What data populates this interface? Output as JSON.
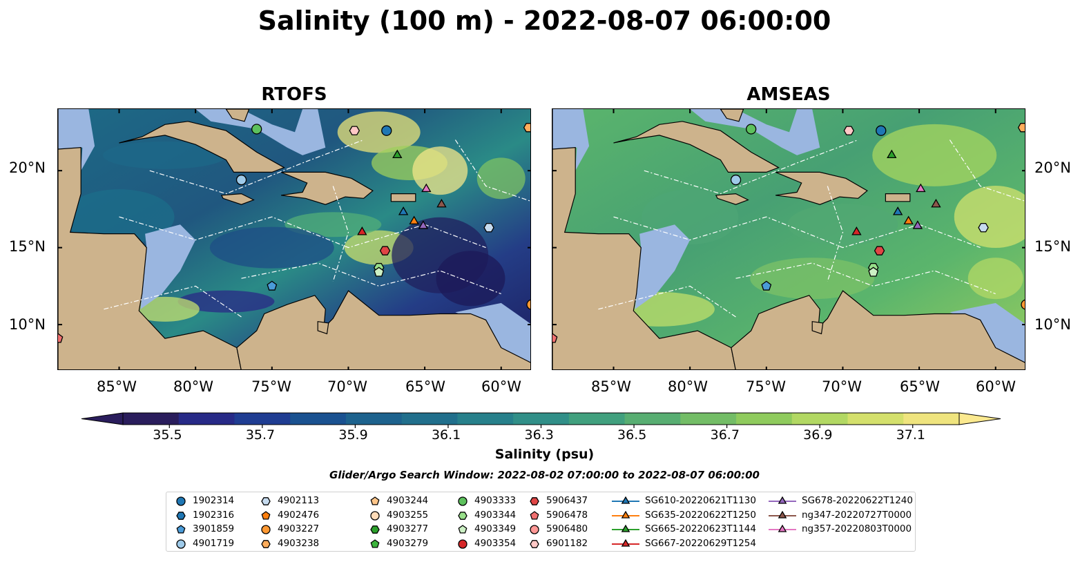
{
  "title": "Salinity (100 m) - 2022-08-07 06:00:00",
  "panels": [
    {
      "name": "RTOFS"
    },
    {
      "name": "AMSEAS"
    }
  ],
  "map": {
    "lon_range": [
      -89,
      -58
    ],
    "lat_range": [
      7,
      24
    ],
    "lon_ticks": [
      "85°W",
      "80°W",
      "75°W",
      "70°W",
      "65°W",
      "60°W"
    ],
    "lon_tick_values": [
      -85,
      -80,
      -75,
      -70,
      -65,
      -60
    ],
    "lat_ticks": [
      "20°N",
      "15°N",
      "10°N"
    ],
    "lat_tick_values": [
      20,
      15,
      10
    ],
    "land_color": "#cdb38c",
    "shelf_color": "#9ab6e0"
  },
  "colorbar": {
    "label": "Salinity (psu)",
    "ticks": [
      "35.5",
      "35.7",
      "35.9",
      "36.1",
      "36.3",
      "36.5",
      "36.7",
      "36.9",
      "37.1"
    ],
    "range": [
      35.4,
      37.2
    ],
    "colormap": "haline"
  },
  "search_window": "Glider/Argo Search Window: 2022-08-02 07:00:00 to 2022-08-07 06:00:00",
  "legend": {
    "columns": [
      [
        {
          "label": "1902314",
          "marker": "circle",
          "color": "#1f77b4"
        },
        {
          "label": "1902316",
          "marker": "hexagon",
          "color": "#1f77b4"
        },
        {
          "label": "3901859",
          "marker": "pentagon",
          "color": "#4a9bd8"
        },
        {
          "label": "4901719",
          "marker": "circle",
          "color": "#9ecae9"
        }
      ],
      [
        {
          "label": "4902113",
          "marker": "hexagon",
          "color": "#c6dbef"
        },
        {
          "label": "4902476",
          "marker": "pentagon",
          "color": "#ff7f0e"
        },
        {
          "label": "4903227",
          "marker": "circle",
          "color": "#ff9933"
        },
        {
          "label": "4903238",
          "marker": "hexagon",
          "color": "#ffad5c"
        }
      ],
      [
        {
          "label": "4903244",
          "marker": "pentagon",
          "color": "#ffc68a"
        },
        {
          "label": "4903255",
          "marker": "circle",
          "color": "#ffdbb8"
        },
        {
          "label": "4903277",
          "marker": "hexagon",
          "color": "#2ca02c"
        },
        {
          "label": "4903279",
          "marker": "pentagon",
          "color": "#3cb43c"
        }
      ],
      [
        {
          "label": "4903333",
          "marker": "circle",
          "color": "#5dc15d"
        },
        {
          "label": "4903344",
          "marker": "hexagon",
          "color": "#98df8a"
        },
        {
          "label": "4903349",
          "marker": "pentagon",
          "color": "#ccf0c4"
        },
        {
          "label": "4903354",
          "marker": "circle",
          "color": "#d62728"
        }
      ],
      [
        {
          "label": "5906437",
          "marker": "hexagon",
          "color": "#e04545"
        },
        {
          "label": "5906478",
          "marker": "pentagon",
          "color": "#f07070"
        },
        {
          "label": "5906480",
          "marker": "circle",
          "color": "#ff9896"
        },
        {
          "label": "6901182",
          "marker": "hexagon",
          "color": "#ffc8c6"
        }
      ],
      [
        {
          "label": "SG610-20220621T1130",
          "marker": "triangle",
          "color": "#1f77b4"
        },
        {
          "label": "SG635-20220622T1250",
          "marker": "triangle",
          "color": "#ff7f0e"
        },
        {
          "label": "SG665-20220623T1144",
          "marker": "triangle",
          "color": "#2ca02c"
        },
        {
          "label": "SG667-20220629T1254",
          "marker": "triangle",
          "color": "#d62728"
        }
      ],
      [
        {
          "label": "SG678-20220622T1240",
          "marker": "triangle",
          "color": "#9467bd"
        },
        {
          "label": "ng347-20220727T0000",
          "marker": "triangle",
          "color": "#8c564b"
        },
        {
          "label": "ng357-20220803T0000",
          "marker": "triangle",
          "color": "#e377c2"
        }
      ]
    ]
  },
  "stations": [
    {
      "label": "1902314",
      "lon": -67.5,
      "lat": 22.6
    },
    {
      "label": "4903333",
      "lon": -76.0,
      "lat": 22.7
    },
    {
      "label": "6901182",
      "lon": -69.6,
      "lat": 22.6
    },
    {
      "label": "4901719",
      "lon": -77.0,
      "lat": 19.4
    },
    {
      "label": "SG665-20220623T1144",
      "lon": -66.8,
      "lat": 21.0
    },
    {
      "label": "ng357-20220803T0000",
      "lon": -64.9,
      "lat": 18.8
    },
    {
      "label": "ng347-20220727T0000",
      "lon": -63.9,
      "lat": 17.8
    },
    {
      "label": "SG610-20220621T1130",
      "lon": -66.4,
      "lat": 17.3
    },
    {
      "label": "SG635-20220622T1250",
      "lon": -65.7,
      "lat": 16.7
    },
    {
      "label": "SG678-20220622T1240",
      "lon": -65.1,
      "lat": 16.4
    },
    {
      "label": "SG667-20220629T1254",
      "lon": -69.1,
      "lat": 16.0
    },
    {
      "label": "5906437",
      "lon": -67.6,
      "lat": 14.8
    },
    {
      "label": "4903344",
      "lon": -68.0,
      "lat": 13.7
    },
    {
      "label": "4903349",
      "lon": -68.0,
      "lat": 13.4
    },
    {
      "label": "3901859",
      "lon": -75.0,
      "lat": 12.5
    },
    {
      "label": "4903238",
      "lon": -58.2,
      "lat": 22.8
    },
    {
      "label": "4903227",
      "lon": -58.0,
      "lat": 11.3
    },
    {
      "label": "5906478",
      "lon": -89.0,
      "lat": 9.1
    },
    {
      "label": "4902113",
      "lon": -60.8,
      "lat": 16.3
    }
  ]
}
